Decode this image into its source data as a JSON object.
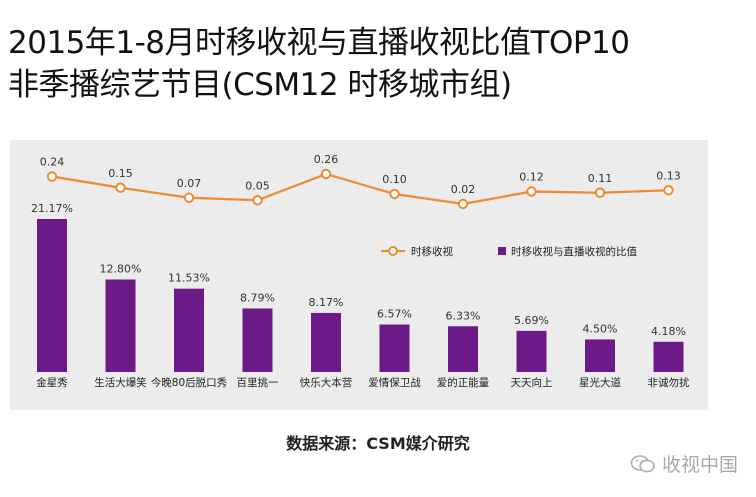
{
  "title": {
    "line1": "2015年1-8月时移收视与直播收视比值TOP10",
    "line2": "非季播综艺节目(CSM12 时移城市组)"
  },
  "source": "数据来源：CSM媒介研究",
  "watermark": {
    "text": "收视中国",
    "icon": "wechat-icon"
  },
  "colors": {
    "bar": "#6b1a87",
    "line": "#f08a2e",
    "panel": "#ececec"
  },
  "chart_data": {
    "type": "bar+line",
    "categories": [
      "金星秀",
      "生活大爆笑",
      "今晚80后脱口秀",
      "百里挑一",
      "快乐大本营",
      "爱情保卫战",
      "爱的正能量",
      "天天向上",
      "星光大道",
      "非诚勿扰"
    ],
    "series": [
      {
        "name": "时移收视与直播收视的比值",
        "type": "bar",
        "values": [
          21.17,
          12.8,
          11.53,
          8.79,
          8.17,
          6.57,
          6.33,
          5.69,
          4.5,
          4.18
        ],
        "labels": [
          "21.17%",
          "12.80%",
          "11.53%",
          "8.79%",
          "8.17%",
          "6.57%",
          "6.33%",
          "5.69%",
          "4.50%",
          "4.18%"
        ]
      },
      {
        "name": "时移收视",
        "type": "line",
        "values": [
          0.24,
          0.15,
          0.07,
          0.05,
          0.26,
          0.1,
          0.02,
          0.12,
          0.11,
          0.13
        ],
        "labels": [
          "0.24",
          "0.15",
          "0.07",
          "0.05",
          "0.26",
          "0.10",
          "0.02",
          "0.12",
          "0.11",
          "0.13"
        ]
      }
    ],
    "legend": {
      "placement": "right-middle",
      "items": [
        "时移收视",
        "时移收视与直播收视的比值"
      ]
    },
    "bar_ylim": [
      0,
      22
    ],
    "line_ylim": [
      0,
      0.26
    ]
  }
}
